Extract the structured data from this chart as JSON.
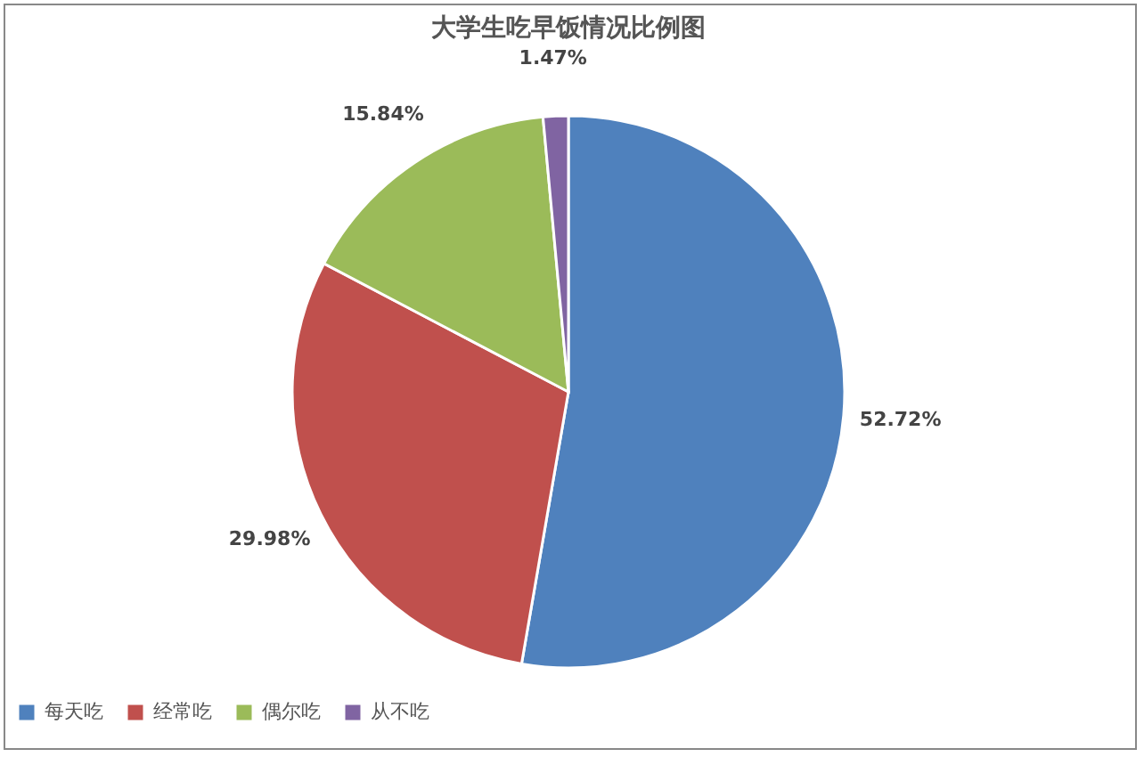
{
  "chart_data": {
    "type": "pie",
    "title": "大学生吃早饭情况比例图",
    "categories": [
      "每天吃",
      "经常吃",
      "偶尔吃",
      "从不吃"
    ],
    "values": [
      52.72,
      29.98,
      15.84,
      1.47
    ],
    "colors": [
      "#4f81bd",
      "#c0504d",
      "#9bbb59",
      "#8064a2"
    ],
    "value_labels": [
      "52.72%",
      "29.98%",
      "15.84%",
      "1.47%"
    ],
    "legend": "bottom"
  }
}
